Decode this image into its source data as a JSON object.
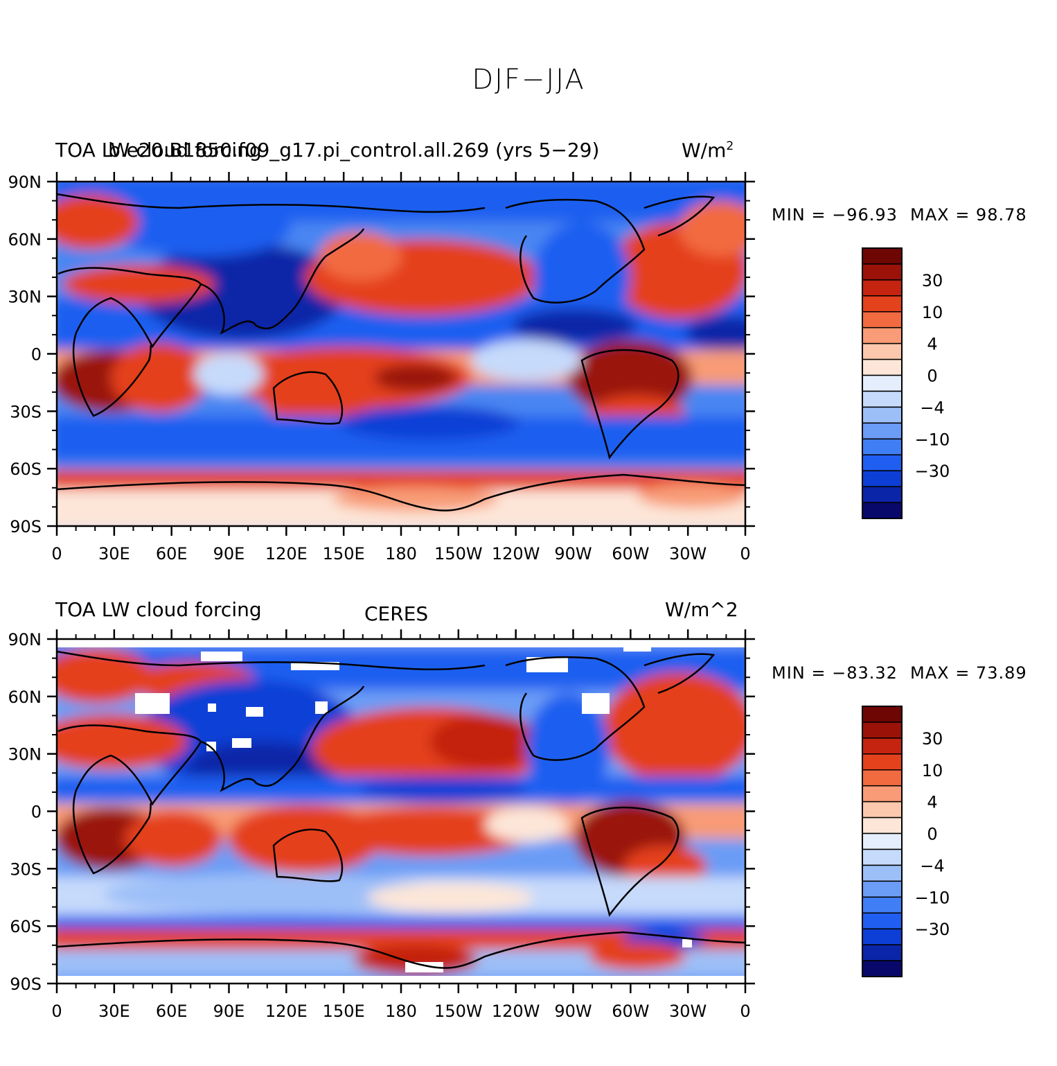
{
  "title": "DJF−JJA",
  "panels": [
    {
      "left_string": "TOA LW cloud forcing",
      "center_string": "b.e20.B1850.f09_g17.pi_control.all.269 (yrs 5−29)",
      "right_string": "W/m",
      "right_superscript": "2",
      "min_label": "MIN = −96.93",
      "max_label": "MAX =  98.78"
    },
    {
      "left_string": "TOA LW cloud forcing",
      "center_string": "CERES",
      "right_string": "W/m^2",
      "right_superscript": "",
      "min_label": "MIN = −83.32",
      "max_label": "MAX =  73.89"
    }
  ],
  "lat_labels": [
    "90N",
    "60N",
    "30N",
    "0",
    "30S",
    "60S",
    "90S"
  ],
  "lon_labels": [
    "0",
    "30E",
    "60E",
    "90E",
    "120E",
    "150E",
    "180",
    "150W",
    "120W",
    "90W",
    "60W",
    "30W",
    "0"
  ],
  "colorbar": {
    "colors": [
      "#08086b",
      "#0b25a8",
      "#0d3fd6",
      "#1f5ef0",
      "#3f7ef4",
      "#6b9cf6",
      "#9dbff8",
      "#c6dafb",
      "#e4eefc",
      "#fde6d8",
      "#fcc8ad",
      "#f89b76",
      "#f26a3f",
      "#e4411d",
      "#c42410",
      "#9a1208",
      "#6e0604"
    ],
    "tick_labels": [
      "30",
      "10",
      "4",
      "0",
      "−4",
      "−10",
      "−30"
    ]
  },
  "chart_data": [
    {
      "type": "heatmap",
      "title": "TOA LW cloud forcing",
      "subtitle": "b.e20.B1850.f09_g17.pi_control.all.269 (yrs 5−29)",
      "units": "W/m^2",
      "x_axis": "longitude",
      "y_axis": "latitude",
      "xlim": [
        0,
        360
      ],
      "ylim": [
        -90,
        90
      ],
      "min": -96.93,
      "max": 98.78,
      "levels": [
        -50,
        -40,
        -30,
        -20,
        -15,
        -10,
        -6,
        -4,
        -2,
        0,
        2,
        4,
        6,
        10,
        15,
        20,
        30,
        40
      ]
    },
    {
      "type": "heatmap",
      "title": "TOA LW cloud forcing",
      "subtitle": "CERES",
      "units": "W/m^2",
      "x_axis": "longitude",
      "y_axis": "latitude",
      "xlim": [
        0,
        360
      ],
      "ylim": [
        -90,
        90
      ],
      "min": -83.32,
      "max": 73.89,
      "levels": [
        -50,
        -40,
        -30,
        -20,
        -15,
        -10,
        -6,
        -4,
        -2,
        0,
        2,
        4,
        6,
        10,
        15,
        20,
        30,
        40
      ]
    }
  ]
}
